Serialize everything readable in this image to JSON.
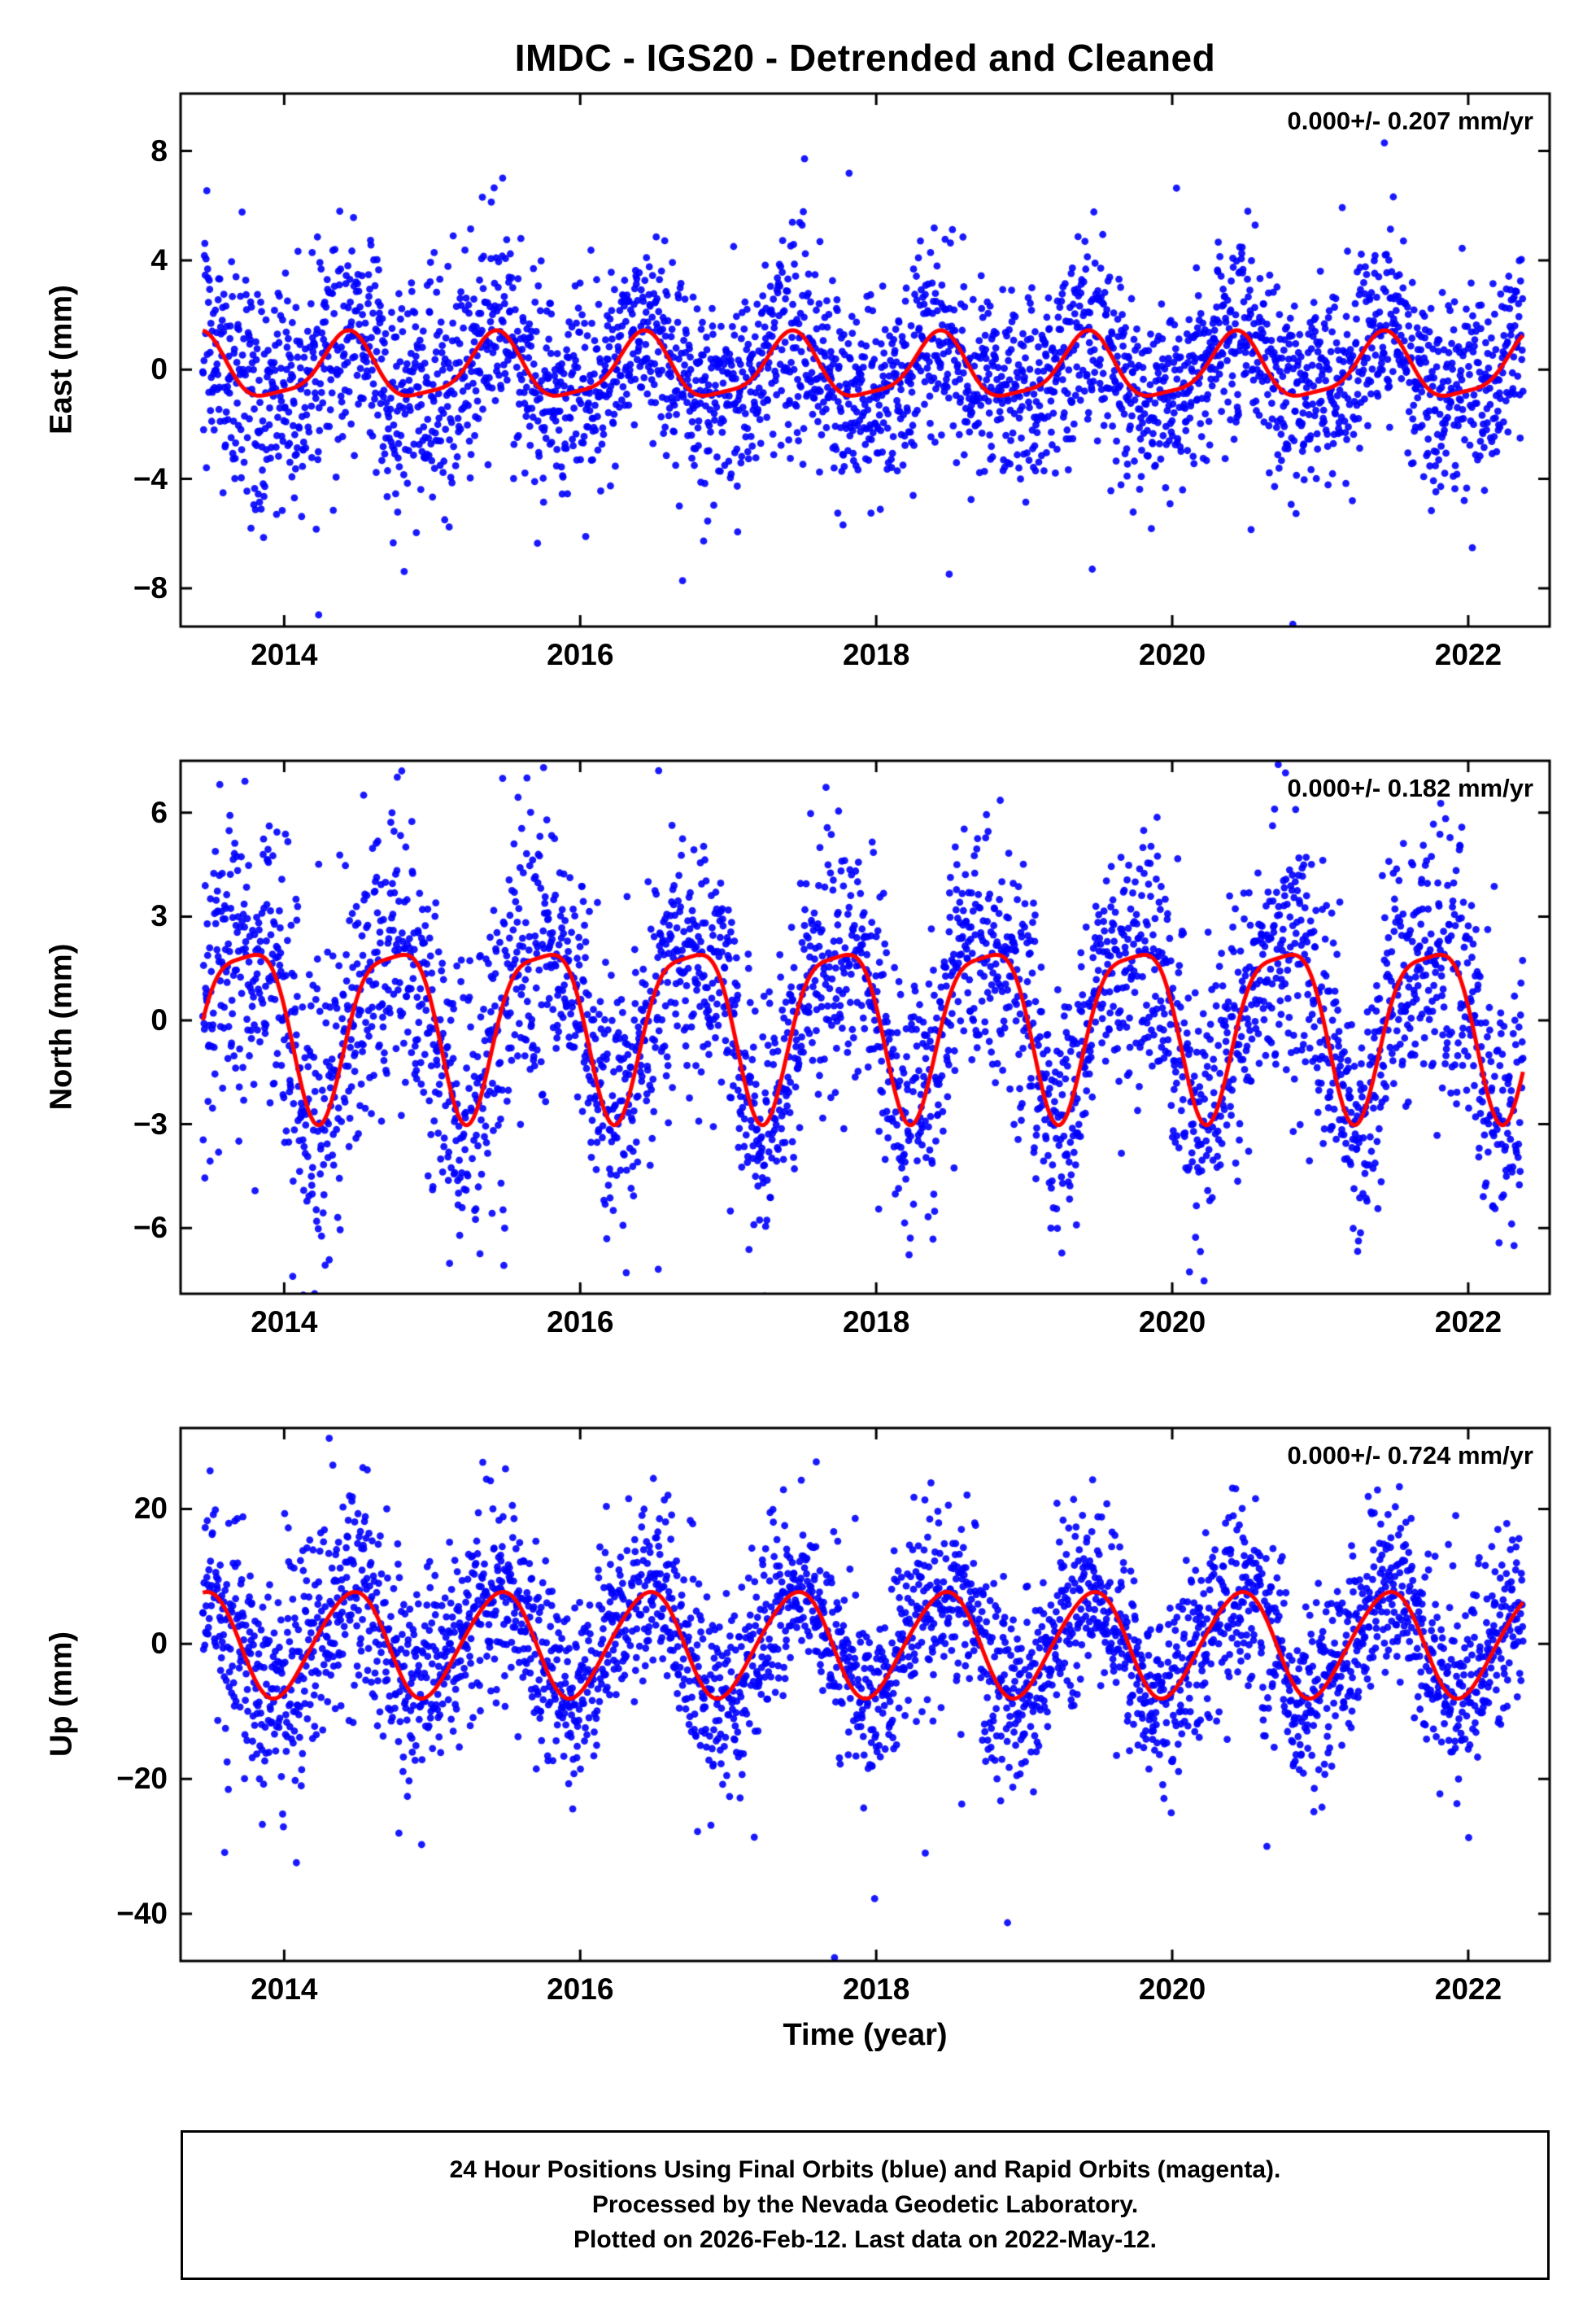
{
  "title": "IMDC - IGS20 - Detrended and Cleaned",
  "station_id": "IMDC",
  "reference_frame": "IGS20",
  "processing_note": "Detrended and Cleaned",
  "colors": {
    "points": "#0000ff",
    "model_line": "#ff0000",
    "frame": "#000000",
    "text": "#000000",
    "background": "#ffffff"
  },
  "footer": {
    "lines": [
      "24 Hour Positions Using Final Orbits (blue) and Rapid Orbits (magenta).",
      "Processed by the Nevada Geodetic Laboratory.",
      "Plotted on 2026-Feb-12. Last data on 2022-May-12."
    ]
  },
  "chart_data": {
    "type": "scatter",
    "description": "Three stacked GPS daily position time-series panels (East, North, Up residuals in mm) with blue daily scatter points and a red seasonal model curve.",
    "x_axis": {
      "label": "Time (year)",
      "lim": [
        2013.3,
        2022.55
      ],
      "ticks": [
        2014,
        2016,
        2018,
        2020,
        2022
      ],
      "tick_labels": [
        "2014",
        "2016",
        "2018",
        "2020",
        "2022"
      ],
      "data_range": [
        2013.45,
        2022.37
      ],
      "sampling": "daily"
    },
    "panels": [
      {
        "name": "East",
        "ylabel": "East (mm)",
        "annotation": "0.000+/- 0.207 mm/yr",
        "trend_mm_per_yr": 0.0,
        "trend_sigma_mm_per_yr": 0.207,
        "ylim": [
          -9.4,
          10.1
        ],
        "yticks": [
          8,
          4,
          0,
          -4,
          -8
        ],
        "ytick_labels": [
          "8",
          "4",
          "0",
          "−4",
          "−8"
        ],
        "seasonal_model": {
          "peak_mm": 1.4,
          "trough_mm": -1.2,
          "harmonics": [
            {
              "k": 1,
              "cos": -1.008,
              "sin": 0.554
            },
            {
              "k": 2,
              "cos": 0.243,
              "sin": -0.176
            }
          ]
        },
        "noise": {
          "sigma_mm": 1.7,
          "early_until": 2015.8,
          "early_factor": 1.25,
          "outlier_fraction": 0.03,
          "extreme_fraction": 0.004
        }
      },
      {
        "name": "North",
        "ylabel": "North (mm)",
        "annotation": "0.000+/- 0.182 mm/yr",
        "trend_mm_per_yr": 0.0,
        "trend_sigma_mm_per_yr": 0.182,
        "ylim": [
          -7.9,
          7.5
        ],
        "yticks": [
          6,
          3,
          0,
          -3,
          -6
        ],
        "ytick_labels": [
          "6",
          "3",
          "0",
          "−3",
          "−6"
        ],
        "seasonal_model": {
          "peak_mm": 1.8,
          "trough_mm": -2.6,
          "harmonics": [
            {
              "k": 1,
              "cos": -0.177,
              "sin": -2.419
            },
            {
              "k": 2,
              "cos": 0.577,
              "sin": -0.192
            }
          ]
        },
        "noise": {
          "sigma_mm": 1.8,
          "early_until": 2015.8,
          "early_factor": 1.25,
          "outlier_fraction": 0.03,
          "extreme_fraction": 0.004
        }
      },
      {
        "name": "Up",
        "ylabel": "Up (mm)",
        "annotation": "0.000+/- 0.724 mm/yr",
        "trend_mm_per_yr": 0.0,
        "trend_sigma_mm_per_yr": 0.724,
        "ylim": [
          -47,
          32
        ],
        "yticks": [
          20,
          0,
          -20,
          -40
        ],
        "ytick_labels": [
          "20",
          "0",
          "−20",
          "−40"
        ],
        "seasonal_model": {
          "peak_mm": 8.0,
          "trough_mm": -7.8,
          "harmonics": [
            {
              "k": 1,
              "cos": -7.418,
              "sin": 2.41
            },
            {
              "k": 2,
              "cos": 0.216,
              "sin": 0.666
            }
          ]
        },
        "noise": {
          "sigma_mm": 6.8,
          "early_until": 2015.0,
          "early_factor": 1.15,
          "outlier_fraction": 0.03,
          "extreme_fraction": 0.004
        }
      }
    ]
  }
}
